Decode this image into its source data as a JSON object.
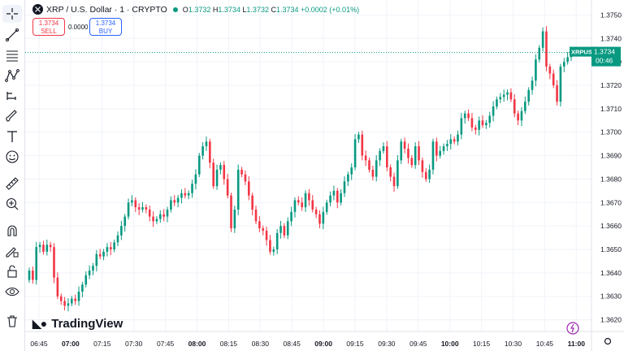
{
  "symbol": {
    "name": "XRP / U.S. Dollar · 1 · CRYPTO"
  },
  "ohlc": {
    "o_label": "O",
    "o": "1.3732",
    "h_label": "H",
    "h": "1.3734",
    "l_label": "L",
    "l": "1.3732",
    "c_label": "C",
    "c": "1.3734",
    "change": "+0.0002 (+0.01%)"
  },
  "trade": {
    "sell_price": "1.3734",
    "sell_label": "SELL",
    "spread": "0.0000",
    "buy_price": "1.3734",
    "buy_label": "BUY"
  },
  "price_tag": {
    "symbol": "XRPUSD",
    "price": "1.3734",
    "countdown": "00:46"
  },
  "brand": {
    "name": "TradingView"
  },
  "colors": {
    "up": "#089981",
    "down": "#f23645",
    "grid": "#f0f3fa",
    "axis_text": "#131722"
  },
  "toolbar": [
    "crosshair-icon",
    "trend-line-icon",
    "fib-icon",
    "pattern-icon",
    "forecast-icon",
    "brush-icon",
    "text-icon",
    "emoji-icon",
    "ruler-icon",
    "zoom-in-icon",
    "magnet-icon",
    "lock-draw-icon",
    "lock-icon",
    "eye-icon",
    "trash-icon"
  ],
  "chart_data": {
    "type": "candlestick",
    "symbol": "XRPUSD",
    "interval": "1 minute",
    "y_ticks": [
      "1.3750",
      "1.3740",
      "1.3730",
      "1.3720",
      "1.3710",
      "1.3700",
      "1.3690",
      "1.3680",
      "1.3670",
      "1.3660",
      "1.3650",
      "1.3640",
      "1.3630",
      "1.3620"
    ],
    "x_ticks": [
      "06:45",
      "07:00",
      "07:15",
      "07:30",
      "07:45",
      "08:00",
      "08:15",
      "08:30",
      "08:45",
      "09:00",
      "09:15",
      "09:30",
      "09:45",
      "10:00",
      "10:15",
      "10:30",
      "10:45",
      "11:00"
    ],
    "bold_x_ticks": [
      "07:00",
      "08:00",
      "09:00",
      "10:00",
      "11:00"
    ],
    "ylim": [
      1.3615,
      1.3755
    ],
    "last_price": 1.3734,
    "closes": [
      1.3641,
      1.3637,
      1.3651,
      1.3652,
      1.3649,
      1.3652,
      1.3651,
      1.3638,
      1.363,
      1.3628,
      1.3626,
      1.3627,
      1.3629,
      1.3628,
      1.3632,
      1.3635,
      1.3639,
      1.3641,
      1.3643,
      1.3648,
      1.3647,
      1.3649,
      1.3651,
      1.365,
      1.3653,
      1.3656,
      1.366,
      1.3664,
      1.367,
      1.3671,
      1.3668,
      1.3667,
      1.3668,
      1.3667,
      1.3664,
      1.3662,
      1.3663,
      1.3665,
      1.3664,
      1.3667,
      1.3671,
      1.367,
      1.3672,
      1.3674,
      1.3673,
      1.3674,
      1.3678,
      1.3682,
      1.369,
      1.3694,
      1.3696,
      1.3687,
      1.3677,
      1.3684,
      1.3686,
      1.368,
      1.3673,
      1.3659,
      1.3667,
      1.3684,
      1.3682,
      1.3679,
      1.3673,
      1.3667,
      1.3662,
      1.3659,
      1.3658,
      1.3654,
      1.3649,
      1.365,
      1.3657,
      1.366,
      1.3656,
      1.3662,
      1.3666,
      1.3671,
      1.367,
      1.3668,
      1.3674,
      1.3671,
      1.3667,
      1.3665,
      1.3661,
      1.3666,
      1.367,
      1.3673,
      1.3675,
      1.367,
      1.3674,
      1.3679,
      1.3682,
      1.3685,
      1.3697,
      1.3699,
      1.369,
      1.3688,
      1.3684,
      1.3681,
      1.3688,
      1.3692,
      1.3694,
      1.3685,
      1.3681,
      1.3677,
      1.3688,
      1.3696,
      1.3693,
      1.3689,
      1.3686,
      1.3694,
      1.3688,
      1.3683,
      1.368,
      1.3684,
      1.3696,
      1.369,
      1.3692,
      1.3694,
      1.3695,
      1.3697,
      1.3696,
      1.3699,
      1.3706,
      1.3708,
      1.3706,
      1.3702,
      1.3701,
      1.3705,
      1.3703,
      1.3704,
      1.3707,
      1.3711,
      1.3714,
      1.3715,
      1.3716,
      1.3717,
      1.3714,
      1.3708,
      1.3705,
      1.3709,
      1.3713,
      1.3718,
      1.3722,
      1.3731,
      1.3736,
      1.3743,
      1.3728,
      1.3725,
      1.372,
      1.3713,
      1.3728,
      1.373,
      1.3732,
      1.3734
    ]
  }
}
